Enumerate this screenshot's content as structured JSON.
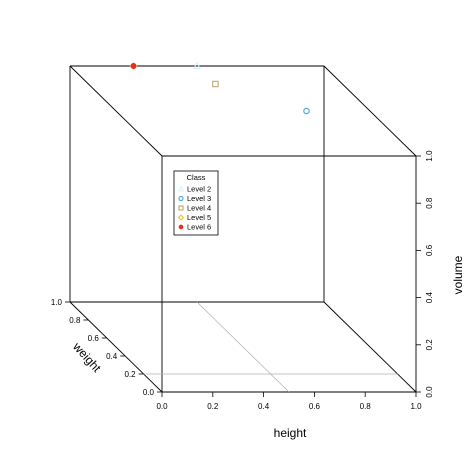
{
  "chart_data": {
    "type": "scatter",
    "projection": "3d-perspective-box",
    "xlabel": "height",
    "ylabel": "weight",
    "zlabel": "volume",
    "xlim": [
      0,
      1
    ],
    "ylim": [
      0,
      1
    ],
    "zlim": [
      0,
      1
    ],
    "ticks": {
      "x": [
        "0.0",
        "0.2",
        "0.4",
        "0.6",
        "0.8",
        "1.0"
      ],
      "y": [
        "0.0",
        "0.2",
        "0.4",
        "0.6",
        "0.8",
        "1.0"
      ],
      "z": [
        "0.0",
        "0.2",
        "0.4",
        "0.6",
        "0.8",
        "1.0"
      ]
    },
    "legend": {
      "title": "Class",
      "position": "inside-top-left",
      "entries": [
        {
          "label": "Level 2",
          "color": "#d8f0f5",
          "symbol": "triangle"
        },
        {
          "label": "Level 3",
          "color": "#4aa8d8",
          "symbol": "circle"
        },
        {
          "label": "Level 4",
          "color": "#b8a060",
          "symbol": "square"
        },
        {
          "label": "Level 5",
          "color": "#e8c020",
          "symbol": "diamond"
        },
        {
          "label": "Level 6",
          "color": "#e03020",
          "symbol": "filled-circle"
        }
      ]
    },
    "points": [
      {
        "level": "Level 2",
        "x": 0.5,
        "y": 1.0,
        "z": 1.0
      },
      {
        "level": "Level 3",
        "x": 0.75,
        "y": 0.5,
        "z": 1.0
      },
      {
        "level": "Level 4",
        "x": 0.5,
        "y": 0.8,
        "z": 1.0
      },
      {
        "level": "Level 5",
        "x": 0.25,
        "y": 1.0,
        "z": 1.0
      },
      {
        "level": "Level 6",
        "x": 0.25,
        "y": 1.0,
        "z": 1.0
      }
    ],
    "floor_lines": [
      {
        "from": {
          "x": 0.5,
          "y": 0.0
        },
        "to": {
          "x": 0.5,
          "y": 1.0
        }
      },
      {
        "from": {
          "x": 0.0,
          "y": 0.2
        },
        "to": {
          "x": 1.0,
          "y": 0.2
        }
      }
    ],
    "grid": false
  }
}
